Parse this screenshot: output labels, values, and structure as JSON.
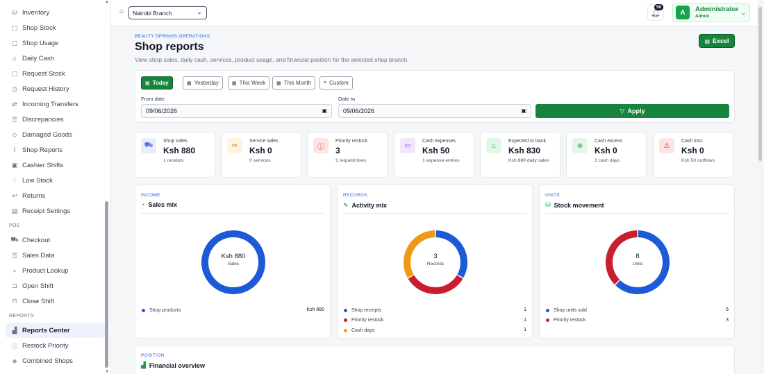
{
  "sidebar": {
    "items_top": [
      {
        "label": "Inventory",
        "icon": "boxes-icon"
      },
      {
        "label": "Shop Stock",
        "icon": "box-icon"
      },
      {
        "label": "Shop Usage",
        "icon": "box-icon"
      },
      {
        "label": "Daily Cash",
        "icon": "bank-icon"
      },
      {
        "label": "Request Stock",
        "icon": "box-icon"
      },
      {
        "label": "Request History",
        "icon": "history-icon"
      },
      {
        "label": "Incoming Transfers",
        "icon": "transfer-icon"
      },
      {
        "label": "Discrepancies",
        "icon": "list-icon"
      },
      {
        "label": "Damaged Goods",
        "icon": "diamond-icon"
      },
      {
        "label": "Shop Reports",
        "icon": "chart-line-icon"
      },
      {
        "label": "Cashier Shifts",
        "icon": "id-badge-icon"
      },
      {
        "label": "Low Stock",
        "icon": "bell-icon"
      },
      {
        "label": "Returns",
        "icon": "return-icon"
      },
      {
        "label": "Receipt Settings",
        "icon": "receipt-icon"
      }
    ],
    "pos_section": "POS",
    "pos_items": [
      {
        "label": "Checkout",
        "icon": "cart-icon"
      },
      {
        "label": "Sales Data",
        "icon": "list-icon"
      },
      {
        "label": "Product Lookup",
        "icon": "search-icon"
      },
      {
        "label": "Open Shift",
        "icon": "unlock-icon"
      },
      {
        "label": "Close Shift",
        "icon": "lock-icon"
      }
    ],
    "reports_section": "REPORTS",
    "report_items": [
      {
        "label": "Reports Center",
        "icon": "bar-chart-icon",
        "active": true
      },
      {
        "label": "Restock Priority",
        "icon": "alert-circle-icon"
      },
      {
        "label": "Combined Shops",
        "icon": "layers-icon"
      }
    ]
  },
  "topbar": {
    "branch": "Nairobi Branch",
    "notifications": "50",
    "user_initial": "A",
    "user_name": "Administrator",
    "user_role": "Admin"
  },
  "header": {
    "eyebrow": "BEAUTY SPRINGS OPERATIONS",
    "title": "Shop reports",
    "subtitle": "View shop sales, daily cash, services, product usage, and financial position for the selected shop branch.",
    "excel_label": "Excel"
  },
  "filters": {
    "chips": [
      {
        "label": "Today",
        "active": true
      },
      {
        "label": "Yesterday",
        "active": false
      },
      {
        "label": "This Week",
        "active": false
      },
      {
        "label": "This Month",
        "active": false
      },
      {
        "label": "Custom",
        "active": false
      }
    ],
    "from_label": "From date",
    "from_value": "09/06/2026",
    "to_label": "Date to",
    "to_value": "09/06/2026",
    "apply_label": "Apply"
  },
  "stats": [
    {
      "label": "Shop sales",
      "value": "Ksh 880",
      "desc": "1 receipts",
      "icon": "cart-icon",
      "color": "#4f6bd8",
      "bg": "#e8edfb"
    },
    {
      "label": "Service sales",
      "value": "Ksh 0",
      "desc": "0 services",
      "icon": "scissors-icon",
      "color": "#b7791f",
      "bg": "#fdf3df"
    },
    {
      "label": "Priority restock",
      "value": "3",
      "desc": "1 request lines",
      "icon": "alert-circle-icon",
      "color": "#dc2626",
      "bg": "#fde4e4"
    },
    {
      "label": "Cash expenses",
      "value": "Ksh 50",
      "desc": "1 expense entries",
      "icon": "wallet-icon",
      "color": "#9333ea",
      "bg": "#f2e6fc"
    },
    {
      "label": "Expected to bank",
      "value": "Ksh 830",
      "desc": "Ksh 880 daily sales",
      "icon": "bank-icon",
      "color": "#16a34a",
      "bg": "#e3f7e9"
    },
    {
      "label": "Cash excess",
      "value": "Ksh 0",
      "desc": "1 cash days",
      "icon": "arrow-up-circle-icon",
      "color": "#16a34a",
      "bg": "#e3f7e9"
    },
    {
      "label": "Cash loss",
      "value": "Ksh 0",
      "desc": "Ksh 50 outflows",
      "icon": "warning-icon",
      "color": "#dc2626",
      "bg": "#fde4e4"
    }
  ],
  "charts": [
    {
      "eyebrow": "INCOME",
      "title": "Sales mix",
      "icon": "pie-icon",
      "center_value": "Ksh 880",
      "center_label": "Sales",
      "legend": [
        {
          "name": "Shop products",
          "value": "Ksh 880",
          "color": "#1d5ad8"
        }
      ]
    },
    {
      "eyebrow": "RECORDS",
      "title": "Activity mix",
      "icon": "activity-icon",
      "center_value": "3",
      "center_label": "Records",
      "legend": [
        {
          "name": "Shop receipts",
          "value": "1",
          "color": "#1d5ad8"
        },
        {
          "name": "Priority restock",
          "value": "1",
          "color": "#c81e2e"
        },
        {
          "name": "Cash days",
          "value": "1",
          "color": "#ee9a17"
        }
      ]
    },
    {
      "eyebrow": "UNITS",
      "title": "Stock movement",
      "icon": "boxes-icon",
      "center_value": "8",
      "center_label": "Units",
      "legend": [
        {
          "name": "Shop units sold",
          "value": "5",
          "color": "#1d5ad8"
        },
        {
          "name": "Priority restock",
          "value": "3",
          "color": "#c81e2e"
        }
      ]
    }
  ],
  "chart_data": [
    {
      "type": "pie",
      "title": "Sales mix",
      "categories": [
        "Shop products"
      ],
      "values": [
        880
      ]
    },
    {
      "type": "pie",
      "title": "Activity mix",
      "categories": [
        "Shop receipts",
        "Priority restock",
        "Cash days"
      ],
      "values": [
        1,
        1,
        1
      ]
    },
    {
      "type": "pie",
      "title": "Stock movement",
      "categories": [
        "Shop units sold",
        "Priority restock"
      ],
      "values": [
        5,
        3
      ]
    }
  ],
  "position": {
    "eyebrow": "POSITION",
    "title": "Financial overview"
  }
}
